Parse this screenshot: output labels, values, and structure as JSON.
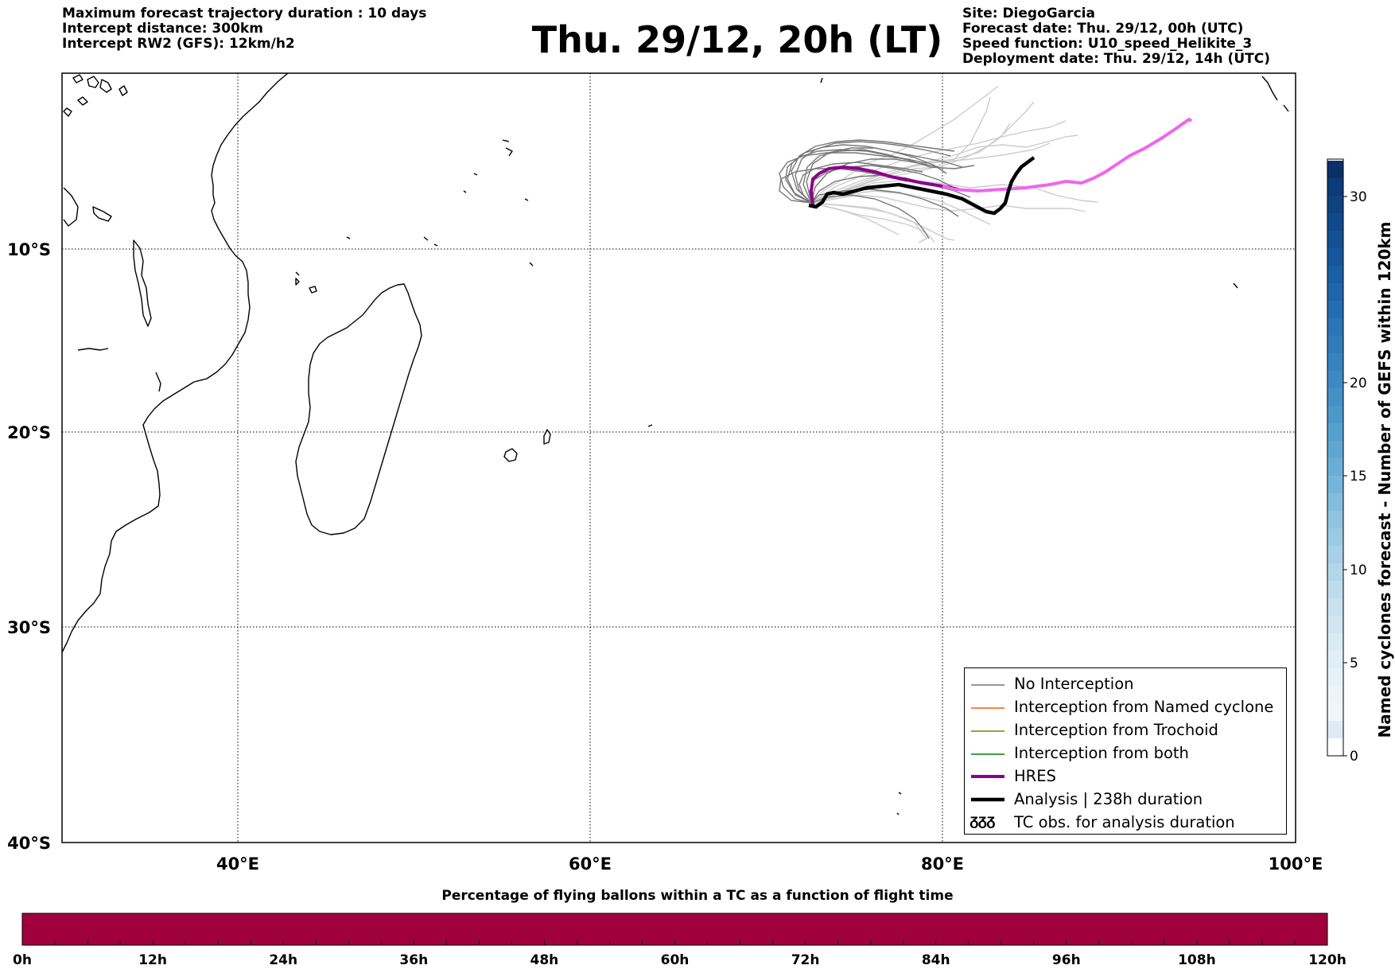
{
  "header": {
    "left_lines": [
      "Maximum forecast trajectory duration : 10 days",
      "Intercept distance: 300km",
      "Intercept RW2 (GFS):  12km/h2"
    ],
    "right_lines": [
      "Site: DiegoGarcia",
      "Forecast date: Thu. 29/12, 00h (UTC)",
      "Speed function: U10_speed_Helikite_3",
      "Deployment date: Thu. 29/12, 14h (UTC)"
    ],
    "title": "Thu. 29/12, 20h (LT)"
  },
  "map": {
    "lon_ticks": [
      "40°E",
      "60°E",
      "80°E",
      "100°E"
    ],
    "lat_ticks": [
      "10°S",
      "20°S",
      "30°S",
      "40°S"
    ]
  },
  "legend": {
    "items": [
      {
        "label": "No Interception",
        "color": "#777777"
      },
      {
        "label": "Interception from Named cyclone",
        "color": "#ff5a00"
      },
      {
        "label": "Interception from Trochoid",
        "color": "#808000"
      },
      {
        "label": "Interception from both",
        "color": "#008000"
      },
      {
        "label": "HRES",
        "color": "#8b008b"
      },
      {
        "label": "Analysis | 238h duration",
        "color": "#000000"
      },
      {
        "label": "TC obs. for analysis duration",
        "symbol": "ᵹᵹᵹ"
      }
    ]
  },
  "right_colorbar": {
    "label": "Named cyclones forecast - Number of GEFS within 120km",
    "ticks": [
      "0",
      "5",
      "10",
      "15",
      "20",
      "30"
    ]
  },
  "bottom_colorbar": {
    "title": "Percentage of flying ballons within a TC as a function of flight time",
    "ticks": [
      "0h",
      "12h",
      "24h",
      "36h",
      "48h",
      "60h",
      "72h",
      "84h",
      "96h",
      "108h",
      "120h"
    ],
    "fill_color": "#a0003c"
  }
}
